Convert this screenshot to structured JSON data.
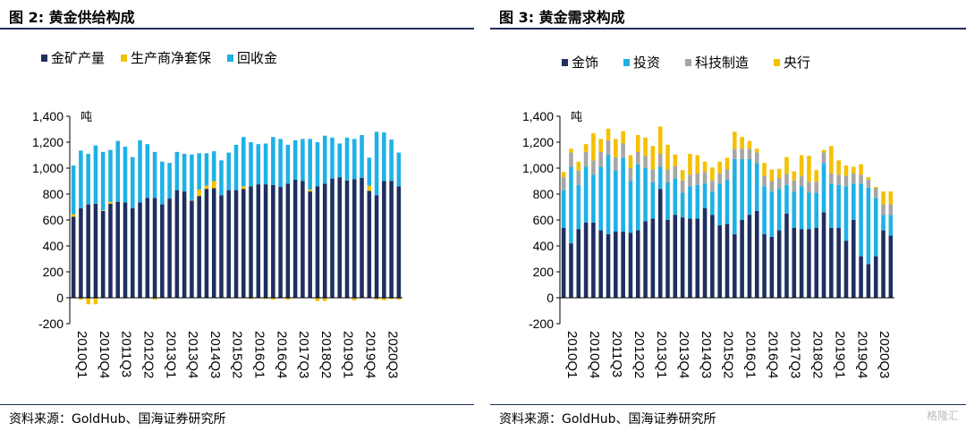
{
  "chart_data": [
    {
      "type": "bar",
      "stacked": true,
      "title": "图 2:  黄金供给构成",
      "ylabel": "吨",
      "ylim": [
        -200,
        1400
      ],
      "yticks": [
        -200,
        0,
        200,
        400,
        600,
        800,
        1000,
        1200,
        1400
      ],
      "ytick_labels": [
        "-200",
        "0",
        "200",
        "400",
        "600",
        "800",
        "1,000",
        "1,200",
        "1,400"
      ],
      "xtick_labels": [
        "2010Q1",
        "2010Q4",
        "2011Q3",
        "2012Q2",
        "2013Q1",
        "2013Q4",
        "2014Q3",
        "2015Q2",
        "2016Q1",
        "2016Q4",
        "2017Q3",
        "2018Q2",
        "2019Q1",
        "2019Q4",
        "2020Q3"
      ],
      "legend_position": "top",
      "series": [
        {
          "name": "金矿产量",
          "color": "#1f2f5f",
          "values": [
            625,
            690,
            720,
            725,
            670,
            725,
            740,
            735,
            690,
            735,
            770,
            770,
            720,
            765,
            830,
            820,
            750,
            785,
            840,
            845,
            790,
            830,
            830,
            840,
            860,
            875,
            875,
            870,
            855,
            880,
            910,
            900,
            820,
            860,
            880,
            920,
            930,
            905,
            915,
            925,
            825,
            790,
            900,
            900,
            860
          ]
        },
        {
          "name": "生产商净套保",
          "color": "#f5c000",
          "values": [
            20,
            -15,
            -50,
            -50,
            5,
            15,
            0,
            -5,
            0,
            0,
            0,
            -15,
            0,
            0,
            0,
            0,
            5,
            50,
            25,
            55,
            0,
            0,
            0,
            20,
            -10,
            0,
            -10,
            -15,
            0,
            -15,
            0,
            0,
            15,
            -25,
            -25,
            0,
            0,
            -5,
            -20,
            0,
            40,
            -15,
            -20,
            -10,
            -15
          ]
        },
        {
          "name": "回收金",
          "color": "#1fb1e6",
          "values": [
            375,
            445,
            390,
            450,
            450,
            400,
            470,
            430,
            395,
            480,
            415,
            355,
            330,
            275,
            295,
            290,
            350,
            280,
            250,
            230,
            270,
            290,
            350,
            380,
            340,
            310,
            315,
            370,
            370,
            300,
            305,
            325,
            390,
            340,
            370,
            315,
            260,
            330,
            310,
            330,
            215,
            490,
            375,
            320,
            260
          ]
        }
      ]
    },
    {
      "type": "bar",
      "stacked": true,
      "title": "图 3:  黄金需求构成",
      "ylabel": "吨",
      "ylim": [
        -200,
        1400
      ],
      "yticks": [
        -200,
        0,
        200,
        400,
        600,
        800,
        1000,
        1200,
        1400
      ],
      "ytick_labels": [
        "-200",
        "0",
        "200",
        "400",
        "600",
        "800",
        "1,000",
        "1,200",
        "1,400"
      ],
      "xtick_labels": [
        "2010Q1",
        "2010Q4",
        "2011Q3",
        "2012Q2",
        "2013Q1",
        "2013Q4",
        "2014Q3",
        "2015Q2",
        "2016Q1",
        "2016Q4",
        "2017Q3",
        "2018Q2",
        "2019Q1",
        "2019Q4",
        "2020Q3"
      ],
      "legend_position": "top",
      "series": [
        {
          "name": "金饰",
          "color": "#1f2f5f",
          "values": [
            540,
            420,
            530,
            580,
            580,
            520,
            490,
            510,
            510,
            500,
            520,
            590,
            610,
            840,
            600,
            640,
            620,
            610,
            610,
            690,
            640,
            560,
            570,
            490,
            600,
            640,
            670,
            490,
            470,
            520,
            650,
            540,
            530,
            530,
            540,
            660,
            540,
            540,
            440,
            600,
            320,
            260,
            320,
            520,
            480
          ]
        },
        {
          "name": "投资",
          "color": "#1fb1e6",
          "values": [
            290,
            590,
            340,
            430,
            370,
            490,
            610,
            470,
            570,
            400,
            510,
            410,
            280,
            170,
            290,
            280,
            190,
            250,
            260,
            190,
            180,
            320,
            340,
            580,
            470,
            430,
            370,
            370,
            350,
            320,
            220,
            280,
            330,
            280,
            270,
            380,
            340,
            330,
            420,
            280,
            560,
            590,
            450,
            120,
            160
          ]
        },
        {
          "name": "科技制造",
          "color": "#a6a6a6",
          "values": [
            100,
            110,
            110,
            115,
            110,
            115,
            115,
            105,
            110,
            100,
            95,
            95,
            100,
            100,
            100,
            95,
            95,
            90,
            90,
            90,
            85,
            80,
            80,
            80,
            80,
            80,
            80,
            80,
            80,
            85,
            85,
            85,
            80,
            85,
            85,
            80,
            80,
            80,
            80,
            80,
            70,
            60,
            75,
            80,
            80
          ]
        },
        {
          "name": "央行",
          "color": "#f5c000",
          "values": [
            40,
            30,
            70,
            60,
            210,
            100,
            90,
            140,
            95,
            100,
            130,
            140,
            180,
            210,
            190,
            90,
            80,
            160,
            140,
            80,
            100,
            90,
            90,
            130,
            90,
            60,
            30,
            100,
            90,
            70,
            130,
            70,
            160,
            200,
            90,
            20,
            210,
            110,
            80,
            50,
            80,
            20,
            10,
            100,
            100
          ]
        }
      ]
    }
  ],
  "panels": {
    "left": {
      "title": "图 2:  黄金供给构成",
      "source": "资料来源：GoldHub、国海证券研究所"
    },
    "right": {
      "title": "图 3:  黄金需求构成",
      "source": "资料来源：GoldHub、国海证券研究所",
      "watermark": "格隆汇"
    }
  }
}
